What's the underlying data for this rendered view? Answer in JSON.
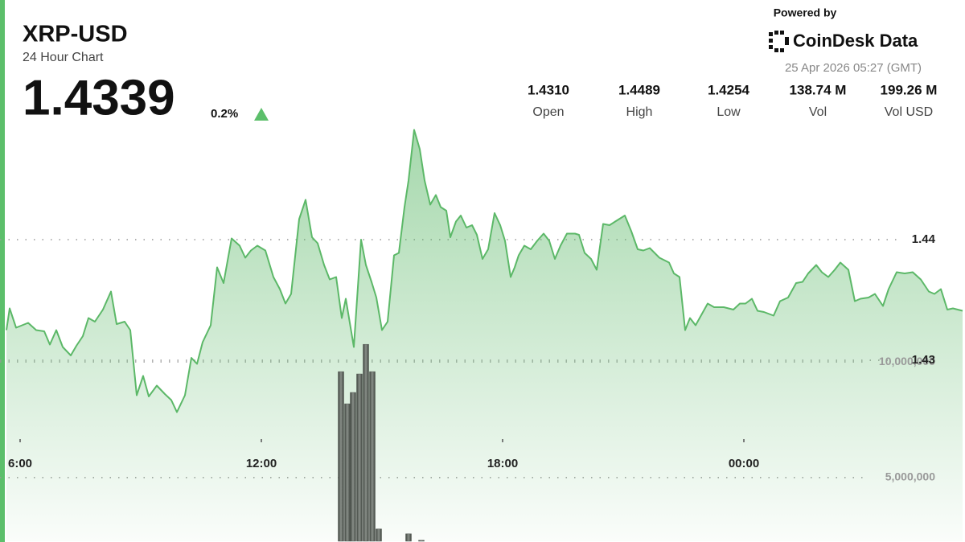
{
  "header": {
    "title": "XRP-USD",
    "subtitle": "24 Hour Chart",
    "price": "1.4339",
    "change": "0.2%",
    "powered_by": "Powered by",
    "brand": "CoinDesk Data",
    "timestamp": "25 Apr 2026 05:27 (GMT)"
  },
  "stats": [
    {
      "value": "1.4310",
      "label": "Open"
    },
    {
      "value": "1.4489",
      "label": "High"
    },
    {
      "value": "1.4254",
      "label": "Low"
    },
    {
      "value": "138.74 M",
      "label": "Vol"
    },
    {
      "value": "199.26 M",
      "label": "Vol USD"
    }
  ],
  "chart_data": {
    "type": "area",
    "grid": true,
    "xlim": [
      5.5,
      29.5
    ],
    "xticks": [
      {
        "value": 6,
        "label": "6:00"
      },
      {
        "value": 12,
        "label": "12:00"
      },
      {
        "value": 18,
        "label": "18:00"
      },
      {
        "value": 24,
        "label": "00:00"
      }
    ],
    "ylim": [
      1.415,
      1.45
    ],
    "yticks": [
      1.43,
      1.44
    ],
    "y2lim": [
      2250000,
      20500000
    ],
    "y2ticks": [
      {
        "value": 5000000,
        "label": "5,000,000"
      },
      {
        "value": 10000000,
        "label": "10,000,000"
      }
    ],
    "series": [
      {
        "type": "area",
        "color": "#5cb868",
        "x": [
          5.66,
          5.74,
          5.9,
          6.2,
          6.4,
          6.6,
          6.74,
          6.9,
          7.06,
          7.26,
          7.4,
          7.56,
          7.7,
          7.86,
          8.06,
          8.26,
          8.4,
          8.6,
          8.74,
          8.9,
          9.06,
          9.2,
          9.4,
          9.6,
          9.76,
          9.9,
          10.1,
          10.26,
          10.4,
          10.54,
          10.74,
          10.9,
          11.06,
          11.26,
          11.46,
          11.6,
          11.74,
          11.9,
          12.1,
          12.3,
          12.46,
          12.6,
          12.74,
          12.94,
          13.1,
          13.26,
          13.4,
          13.56,
          13.7,
          13.86,
          14.0,
          14.1,
          14.3,
          14.48,
          14.6,
          14.74,
          14.86,
          15.0,
          15.14,
          15.3,
          15.42,
          15.56,
          15.66,
          15.8,
          15.94,
          16.06,
          16.2,
          16.34,
          16.46,
          16.6,
          16.7,
          16.84,
          16.96,
          17.1,
          17.24,
          17.36,
          17.5,
          17.64,
          17.8,
          17.94,
          18.06,
          18.2,
          18.3,
          18.4,
          18.54,
          18.7,
          18.86,
          19.02,
          19.16,
          19.3,
          19.44,
          19.6,
          19.8,
          19.9,
          20.04,
          20.2,
          20.34,
          20.5,
          20.66,
          20.8,
          21.04,
          21.2,
          21.36,
          21.5,
          21.66,
          21.9,
          22.14,
          22.26,
          22.4,
          22.54,
          22.66,
          22.8,
          22.9,
          23.1,
          23.26,
          23.5,
          23.74,
          23.9,
          24.04,
          24.2,
          24.34,
          24.5,
          24.74,
          24.9,
          25.1,
          25.3,
          25.46,
          25.6,
          25.8,
          25.94,
          26.1,
          26.26,
          26.4,
          26.6,
          26.76,
          26.9,
          27.1,
          27.26,
          27.46,
          27.6,
          27.8,
          28.0,
          28.2,
          28.4,
          28.6,
          28.74,
          28.9,
          29.06,
          29.2,
          29.44
        ],
        "values": [
          1.4325,
          1.4343,
          1.4327,
          1.4331,
          1.4325,
          1.4324,
          1.4313,
          1.4325,
          1.4311,
          1.4304,
          1.4312,
          1.432,
          1.4335,
          1.4332,
          1.4342,
          1.4357,
          1.433,
          1.4332,
          1.4325,
          1.4271,
          1.4287,
          1.427,
          1.4279,
          1.4272,
          1.4267,
          1.4257,
          1.4271,
          1.4302,
          1.4297,
          1.4315,
          1.4329,
          1.4377,
          1.4364,
          1.4401,
          1.4395,
          1.4385,
          1.4391,
          1.4395,
          1.4391,
          1.4369,
          1.4359,
          1.4347,
          1.4355,
          1.4417,
          1.4433,
          1.4402,
          1.4397,
          1.4379,
          1.4367,
          1.4369,
          1.4335,
          1.4351,
          1.4311,
          1.44,
          1.4379,
          1.4365,
          1.4352,
          1.4325,
          1.4332,
          1.4387,
          1.4389,
          1.4427,
          1.4449,
          1.4491,
          1.4475,
          1.4449,
          1.4429,
          1.4437,
          1.4427,
          1.4424,
          1.4402,
          1.4415,
          1.442,
          1.441,
          1.4412,
          1.4404,
          1.4384,
          1.4392,
          1.4422,
          1.4412,
          1.4399,
          1.4369,
          1.4377,
          1.4387,
          1.4395,
          1.4392,
          1.4399,
          1.4405,
          1.4399,
          1.4384,
          1.4395,
          1.4405,
          1.4405,
          1.4404,
          1.4389,
          1.4384,
          1.4375,
          1.4413,
          1.4412,
          1.4415,
          1.442,
          1.4407,
          1.4392,
          1.4391,
          1.4393,
          1.4385,
          1.4381,
          1.4372,
          1.4369,
          1.4325,
          1.4335,
          1.4329,
          1.4335,
          1.4347,
          1.4344,
          1.4344,
          1.4342,
          1.4347,
          1.4347,
          1.4351,
          1.4341,
          1.434,
          1.4337,
          1.4349,
          1.4352,
          1.4364,
          1.4365,
          1.4372,
          1.4379,
          1.4373,
          1.4369,
          1.4375,
          1.4381,
          1.4375,
          1.4349,
          1.4351,
          1.4352,
          1.4355,
          1.4345,
          1.4359,
          1.4373,
          1.4372,
          1.4373,
          1.4367,
          1.4357,
          1.4355,
          1.4359,
          1.4342,
          1.4343,
          1.4341
        ]
      },
      {
        "type": "bar",
        "axis": "y2",
        "color": "#555b55",
        "x": [
          13.98,
          14.14,
          14.28,
          14.44,
          14.6,
          14.76,
          14.92,
          15.66,
          15.98
        ],
        "values": [
          9580000,
          8190000,
          8680000,
          9480000,
          10760000,
          9580000,
          2780000,
          2570000,
          2290000
        ]
      }
    ]
  }
}
